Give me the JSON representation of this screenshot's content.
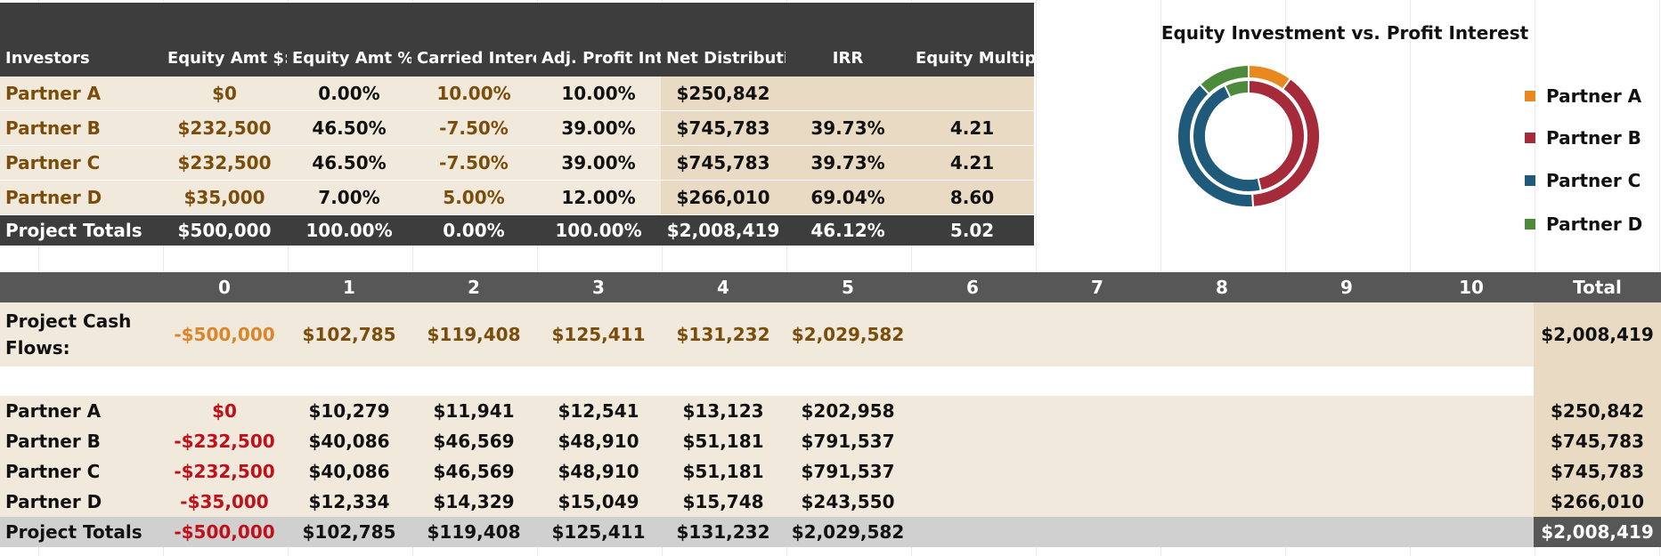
{
  "summary": {
    "headers": [
      "Investors",
      "Equity Amt $:",
      "Equity Amt %:",
      "Carried Interest:",
      "Adj. Profit Interest:",
      "Net Distribution",
      "IRR",
      "Equity Multiple"
    ],
    "rows": [
      {
        "investor": "Partner A",
        "equity_amt": "$0",
        "equity_pct": "0.00%",
        "carried": "10.00%",
        "adj_profit": "10.00%",
        "net": "$250,842",
        "irr": "",
        "multiple": ""
      },
      {
        "investor": "Partner B",
        "equity_amt": "$232,500",
        "equity_pct": "46.50%",
        "carried": "-7.50%",
        "adj_profit": "39.00%",
        "net": "$745,783",
        "irr": "39.73%",
        "multiple": "4.21"
      },
      {
        "investor": "Partner C",
        "equity_amt": "$232,500",
        "equity_pct": "46.50%",
        "carried": "-7.50%",
        "adj_profit": "39.00%",
        "net": "$745,783",
        "irr": "39.73%",
        "multiple": "4.21"
      },
      {
        "investor": "Partner D",
        "equity_amt": "$35,000",
        "equity_pct": "7.00%",
        "carried": "5.00%",
        "adj_profit": "12.00%",
        "net": "$266,010",
        "irr": "69.04%",
        "multiple": "8.60"
      }
    ],
    "totals": {
      "label": "Project Totals",
      "equity_amt": "$500,000",
      "equity_pct": "100.00%",
      "carried": "0.00%",
      "adj_profit": "100.00%",
      "net": "$2,008,419",
      "irr": "46.12%",
      "multiple": "5.02"
    }
  },
  "cashflows": {
    "headers": [
      "",
      "0",
      "1",
      "2",
      "3",
      "4",
      "5",
      "6",
      "7",
      "8",
      "9",
      "10",
      "Total"
    ],
    "project_label": "Project Cash Flows:",
    "project_values": [
      "-$500,000",
      "$102,785",
      "$119,408",
      "$125,411",
      "$131,232",
      "$2,029,582",
      "",
      "",
      "",
      "",
      ""
    ],
    "project_total": "$2,008,419",
    "partners": [
      {
        "name": "Partner A",
        "values": [
          "$0",
          "$10,279",
          "$11,941",
          "$12,541",
          "$13,123",
          "$202,958"
        ],
        "total": "$250,842"
      },
      {
        "name": "Partner B",
        "values": [
          "-$232,500",
          "$40,086",
          "$46,569",
          "$48,910",
          "$51,181",
          "$791,537"
        ],
        "total": "$745,783"
      },
      {
        "name": "Partner C",
        "values": [
          "-$232,500",
          "$40,086",
          "$46,569",
          "$48,910",
          "$51,181",
          "$791,537"
        ],
        "total": "$745,783"
      },
      {
        "name": "Partner D",
        "values": [
          "-$35,000",
          "$12,334",
          "$14,329",
          "$15,049",
          "$15,748",
          "$243,550"
        ],
        "total": "$266,010"
      }
    ],
    "totals": {
      "label": "Project Totals",
      "values": [
        "-$500,000",
        "$102,785",
        "$119,408",
        "$125,411",
        "$131,232",
        "$2,029,582"
      ],
      "total": "$2,008,419"
    }
  },
  "chart_data": {
    "type": "pie",
    "subtype": "doughnut",
    "title": "Equity Investment vs. Profit Interest",
    "categories": [
      "Partner A",
      "Partner B",
      "Partner C",
      "Partner D"
    ],
    "series": [
      {
        "ring": "outer",
        "values": [
          10.0,
          39.0,
          39.0,
          12.0
        ]
      },
      {
        "ring": "inner",
        "values": [
          0.0,
          46.5,
          46.5,
          7.0
        ]
      }
    ],
    "colors": [
      "#e8891f",
      "#a52a3a",
      "#1f5a7a",
      "#4e8a3c"
    ],
    "legend_position": "right"
  }
}
